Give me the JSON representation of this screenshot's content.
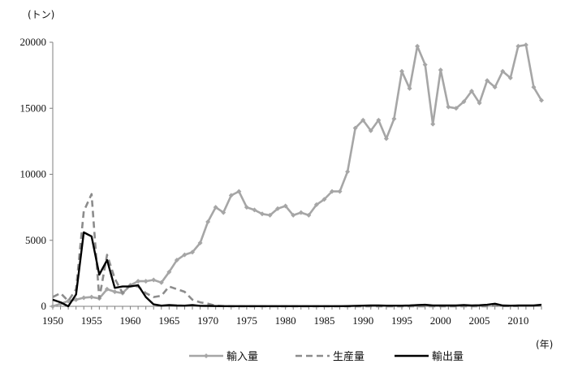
{
  "chart_data": {
    "type": "line",
    "ylabel": "(トン)",
    "xlabel": "(年)",
    "ylim": [
      0,
      20000
    ],
    "xlim": [
      1950,
      2013
    ],
    "yticks": [
      0,
      5000,
      10000,
      15000,
      20000
    ],
    "xticks": [
      1950,
      1955,
      1960,
      1965,
      1970,
      1975,
      1980,
      1985,
      1990,
      1995,
      2000,
      2005,
      2010
    ],
    "grid": false,
    "legend_position": "bottom",
    "series": [
      {
        "name": "輸入量",
        "color": "#a6a6a6",
        "style": "solid-diamond",
        "x": [
          1950,
          1951,
          1952,
          1953,
          1954,
          1955,
          1956,
          1957,
          1958,
          1959,
          1960,
          1961,
          1962,
          1963,
          1964,
          1965,
          1966,
          1967,
          1968,
          1969,
          1970,
          1971,
          1972,
          1973,
          1974,
          1975,
          1976,
          1977,
          1978,
          1979,
          1980,
          1981,
          1982,
          1983,
          1984,
          1985,
          1986,
          1987,
          1988,
          1989,
          1990,
          1991,
          1992,
          1993,
          1994,
          1995,
          1996,
          1997,
          1998,
          1999,
          2000,
          2001,
          2002,
          2003,
          2004,
          2005,
          2006,
          2007,
          2008,
          2009,
          2010,
          2011,
          2012,
          2013
        ],
        "values": [
          0,
          200,
          400,
          500,
          650,
          700,
          600,
          1300,
          1100,
          1000,
          1600,
          1900,
          1900,
          2000,
          1800,
          2600,
          3500,
          3900,
          4100,
          4800,
          6400,
          7500,
          7100,
          8400,
          8700,
          7500,
          7300,
          7000,
          6900,
          7400,
          7600,
          6900,
          7100,
          6900,
          7700,
          8100,
          8700,
          8700,
          10200,
          13500,
          14100,
          13300,
          14100,
          12700,
          14200,
          17800,
          16500,
          19700,
          18300,
          13800,
          17900,
          15100,
          15000,
          15500,
          16300,
          15400,
          17100,
          16600,
          17800,
          17300,
          19700,
          19800,
          16600,
          15600
        ]
      },
      {
        "name": "生産量",
        "color": "#8c8c8c",
        "style": "dashed",
        "x": [
          1950,
          1951,
          1952,
          1953,
          1954,
          1955,
          1956,
          1957,
          1958,
          1959,
          1960,
          1961,
          1962,
          1963,
          1964,
          1965,
          1966,
          1967,
          1968,
          1969,
          1970,
          1971,
          1972,
          1973,
          1974,
          1975,
          1976,
          1977,
          1978,
          1979,
          1980,
          1981,
          1982,
          1983,
          1984,
          1985,
          1986,
          1987,
          1988,
          1989,
          1990,
          1991,
          1992,
          1993,
          1994,
          1995,
          1996,
          1997,
          1998,
          1999,
          2000,
          2001,
          2002,
          2003,
          2004,
          2005,
          2006,
          2007,
          2008,
          2009,
          2010
        ],
        "values": [
          700,
          1000,
          400,
          1300,
          7200,
          8500,
          600,
          3900,
          2100,
          1000,
          1600,
          1500,
          1000,
          700,
          800,
          1500,
          1300,
          1100,
          500,
          300,
          200,
          50,
          20,
          0,
          0,
          0,
          0,
          0,
          0,
          0,
          0,
          0,
          0,
          0,
          0,
          0,
          0,
          0,
          0,
          0,
          0,
          0,
          0,
          0,
          0,
          0,
          0,
          0,
          0,
          0,
          0,
          0,
          0,
          0,
          0,
          0,
          0,
          50,
          20,
          30,
          20
        ]
      },
      {
        "name": "輸出量",
        "color": "#000000",
        "style": "solid",
        "x": [
          1950,
          1951,
          1952,
          1953,
          1954,
          1955,
          1956,
          1957,
          1958,
          1959,
          1960,
          1961,
          1962,
          1963,
          1964,
          1965,
          1966,
          1967,
          1968,
          1969,
          1970,
          1971,
          1972,
          1973,
          1974,
          1975,
          1976,
          1977,
          1978,
          1979,
          1980,
          1981,
          1982,
          1983,
          1984,
          1985,
          1986,
          1987,
          1988,
          1989,
          1990,
          1991,
          1992,
          1993,
          1994,
          1995,
          1996,
          1997,
          1998,
          1999,
          2000,
          2001,
          2002,
          2003,
          2004,
          2005,
          2006,
          2007,
          2008,
          2009,
          2010,
          2011,
          2012,
          2013
        ],
        "values": [
          500,
          300,
          0,
          900,
          5600,
          5300,
          2400,
          3500,
          1400,
          1500,
          1500,
          1600,
          700,
          150,
          50,
          100,
          60,
          50,
          100,
          40,
          30,
          20,
          10,
          10,
          10,
          10,
          10,
          10,
          10,
          10,
          10,
          10,
          10,
          10,
          10,
          10,
          10,
          10,
          20,
          40,
          50,
          60,
          60,
          50,
          50,
          50,
          60,
          100,
          120,
          70,
          60,
          60,
          60,
          100,
          60,
          80,
          120,
          200,
          60,
          50,
          60,
          60,
          60,
          120
        ]
      }
    ]
  }
}
